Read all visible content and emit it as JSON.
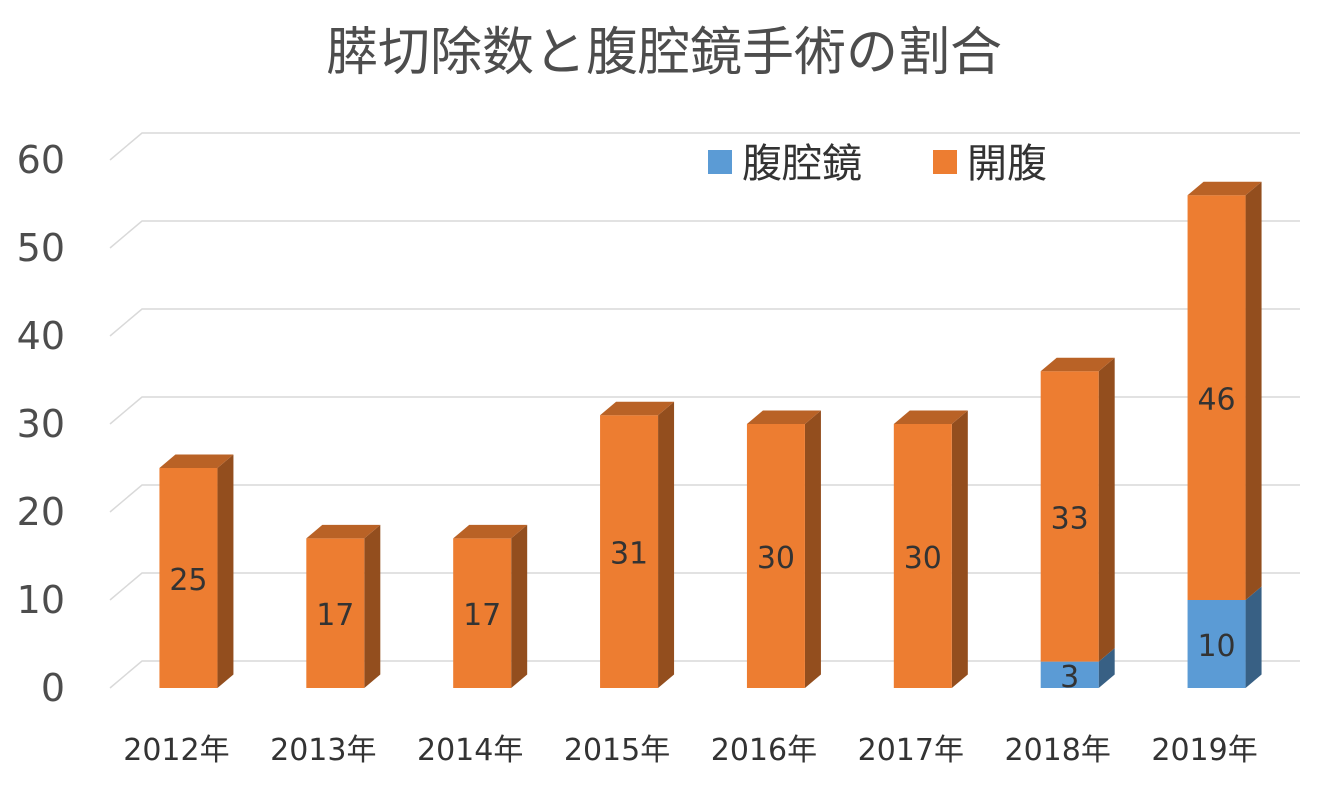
{
  "chart_data": {
    "type": "bar",
    "stacked": true,
    "three_d": true,
    "title": "膵切除数と腹腔鏡手術の割合",
    "xlabel": "",
    "ylabel": "",
    "ylim": [
      0,
      60
    ],
    "yticks": [
      "0",
      "10",
      "20",
      "30",
      "40",
      "50",
      "60"
    ],
    "grid": true,
    "legend_position": "top-right",
    "categories": [
      "2012年",
      "2013年",
      "2014年",
      "2015年",
      "2016年",
      "2017年",
      "2018年",
      "2019年"
    ],
    "series": [
      {
        "name": "腹腔鏡",
        "color": "#5b9bd5",
        "values": [
          0,
          0,
          0,
          0,
          0,
          0,
          3,
          10
        ]
      },
      {
        "name": "開腹",
        "color": "#ed7d31",
        "values": [
          25,
          17,
          17,
          31,
          30,
          30,
          33,
          46
        ]
      }
    ]
  }
}
